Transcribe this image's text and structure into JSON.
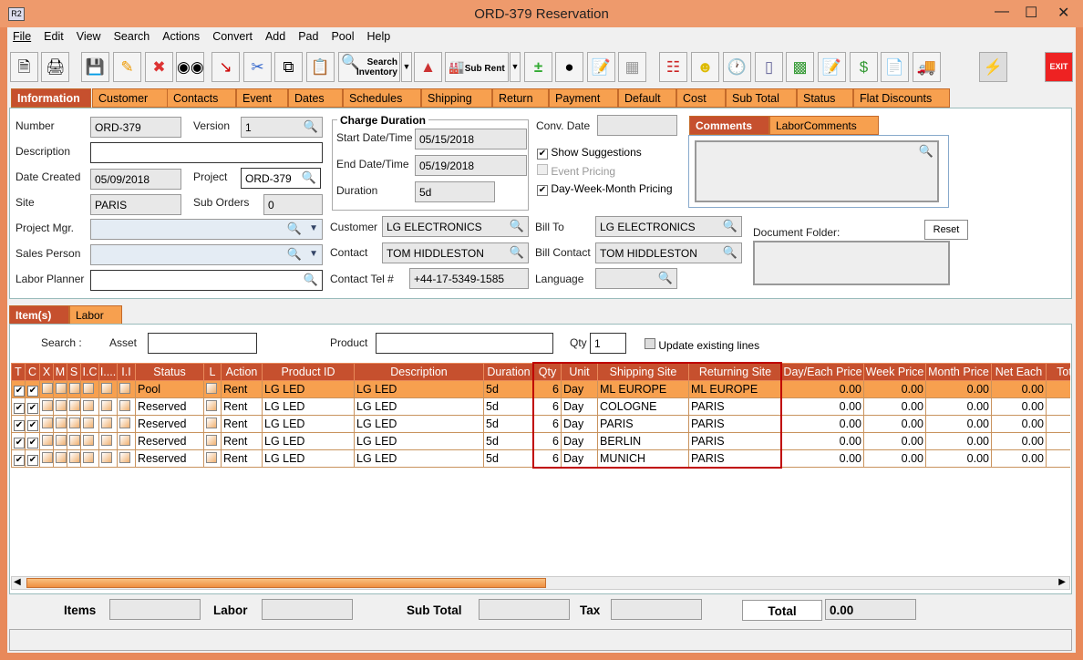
{
  "window": {
    "title": "ORD-379 Reservation",
    "app_icon": "R2"
  },
  "menu": [
    "File",
    "Edit",
    "View",
    "Search",
    "Actions",
    "Convert",
    "Add",
    "Pad",
    "Pool",
    "Help"
  ],
  "toolbar": {
    "search_inventory": "Search Inventory",
    "sub_rent": "Sub Rent",
    "exit": "EXIT"
  },
  "tabs": [
    "Information",
    "Customer",
    "Contacts",
    "Event",
    "Dates",
    "Schedules",
    "Shipping",
    "Return",
    "Payment",
    "Default",
    "Cost",
    "Sub Total",
    "Status",
    "Flat Discounts"
  ],
  "info": {
    "number_label": "Number",
    "number": "ORD-379",
    "version_label": "Version",
    "version": "1",
    "description_label": "Description",
    "description": "",
    "date_created_label": "Date Created",
    "date_created": "05/09/2018",
    "project_label": "Project",
    "project": "ORD-379",
    "site_label": "Site",
    "site": "PARIS",
    "sub_orders_label": "Sub Orders",
    "sub_orders": "0",
    "project_mgr_label": "Project Mgr.",
    "sales_person_label": "Sales Person",
    "labor_planner_label": "Labor Planner",
    "charge_duration_title": "Charge Duration",
    "start_label": "Start Date/Time",
    "start": "05/15/2018",
    "end_label": "End Date/Time",
    "end": "05/19/2018",
    "duration_label": "Duration",
    "duration": "5d",
    "conv_date_label": "Conv. Date",
    "show_suggestions": "Show Suggestions",
    "event_pricing": "Event Pricing",
    "dwm_pricing": "Day-Week-Month Pricing",
    "customer_label": "Customer",
    "customer": "LG ELECTRONICS",
    "contact_label": "Contact",
    "contact": "TOM HIDDLESTON",
    "contact_tel_label": "Contact Tel #",
    "contact_tel": "+44-17-5349-1585",
    "bill_to_label": "Bill To",
    "bill_to": "LG ELECTRONICS",
    "bill_contact_label": "Bill Contact",
    "bill_contact": "TOM HIDDLESTON",
    "language_label": "Language",
    "comments_tab": "Comments",
    "labor_comments_tab": "LaborComments",
    "document_folder_label": "Document Folder:",
    "reset": "Reset"
  },
  "items": {
    "tabs": [
      "Item(s)",
      "Labor"
    ],
    "search_label": "Search :",
    "asset_label": "Asset",
    "product_label": "Product",
    "qty_label": "Qty",
    "qty": "1",
    "update_existing": "Update existing lines",
    "columns": [
      "T",
      "C",
      "X",
      "M",
      "S",
      "I.C",
      "I....",
      "I.I",
      "Status",
      "L",
      "Action",
      "Product ID",
      "Description",
      "Duration",
      "Qty",
      "Unit",
      "Shipping Site",
      "Returning Site",
      "Day/Each Price",
      "Week Price",
      "Month Price",
      "Net Each",
      "Tot"
    ],
    "rows": [
      {
        "status": "Pool",
        "action": "Rent",
        "product_id": "LG LED",
        "description": "LG LED",
        "duration": "5d",
        "qty": "6",
        "unit": "Day",
        "shipping": "ML EUROPE",
        "returning": "ML EUROPE",
        "day": "0.00",
        "week": "0.00",
        "month": "0.00",
        "net": "0.00"
      },
      {
        "status": "Reserved",
        "action": "Rent",
        "product_id": "LG LED",
        "description": "LG LED",
        "duration": "5d",
        "qty": "6",
        "unit": "Day",
        "shipping": "COLOGNE",
        "returning": "PARIS",
        "day": "0.00",
        "week": "0.00",
        "month": "0.00",
        "net": "0.00"
      },
      {
        "status": "Reserved",
        "action": "Rent",
        "product_id": "LG LED",
        "description": "LG LED",
        "duration": "5d",
        "qty": "6",
        "unit": "Day",
        "shipping": "PARIS",
        "returning": "PARIS",
        "day": "0.00",
        "week": "0.00",
        "month": "0.00",
        "net": "0.00"
      },
      {
        "status": "Reserved",
        "action": "Rent",
        "product_id": "LG LED",
        "description": "LG LED",
        "duration": "5d",
        "qty": "6",
        "unit": "Day",
        "shipping": "BERLIN",
        "returning": "PARIS",
        "day": "0.00",
        "week": "0.00",
        "month": "0.00",
        "net": "0.00"
      },
      {
        "status": "Reserved",
        "action": "Rent",
        "product_id": "LG LED",
        "description": "LG LED",
        "duration": "5d",
        "qty": "6",
        "unit": "Day",
        "shipping": "MUNICH",
        "returning": "PARIS",
        "day": "0.00",
        "week": "0.00",
        "month": "0.00",
        "net": "0.00"
      }
    ]
  },
  "totals": {
    "items_label": "Items",
    "labor_label": "Labor",
    "sub_total_label": "Sub Total",
    "tax_label": "Tax",
    "total_label": "Total",
    "total": "0.00"
  },
  "colors": {
    "accent": "#c6502e",
    "tab": "#f7a04f",
    "frame": "#e8895a",
    "highlight_box": "#c00000"
  }
}
